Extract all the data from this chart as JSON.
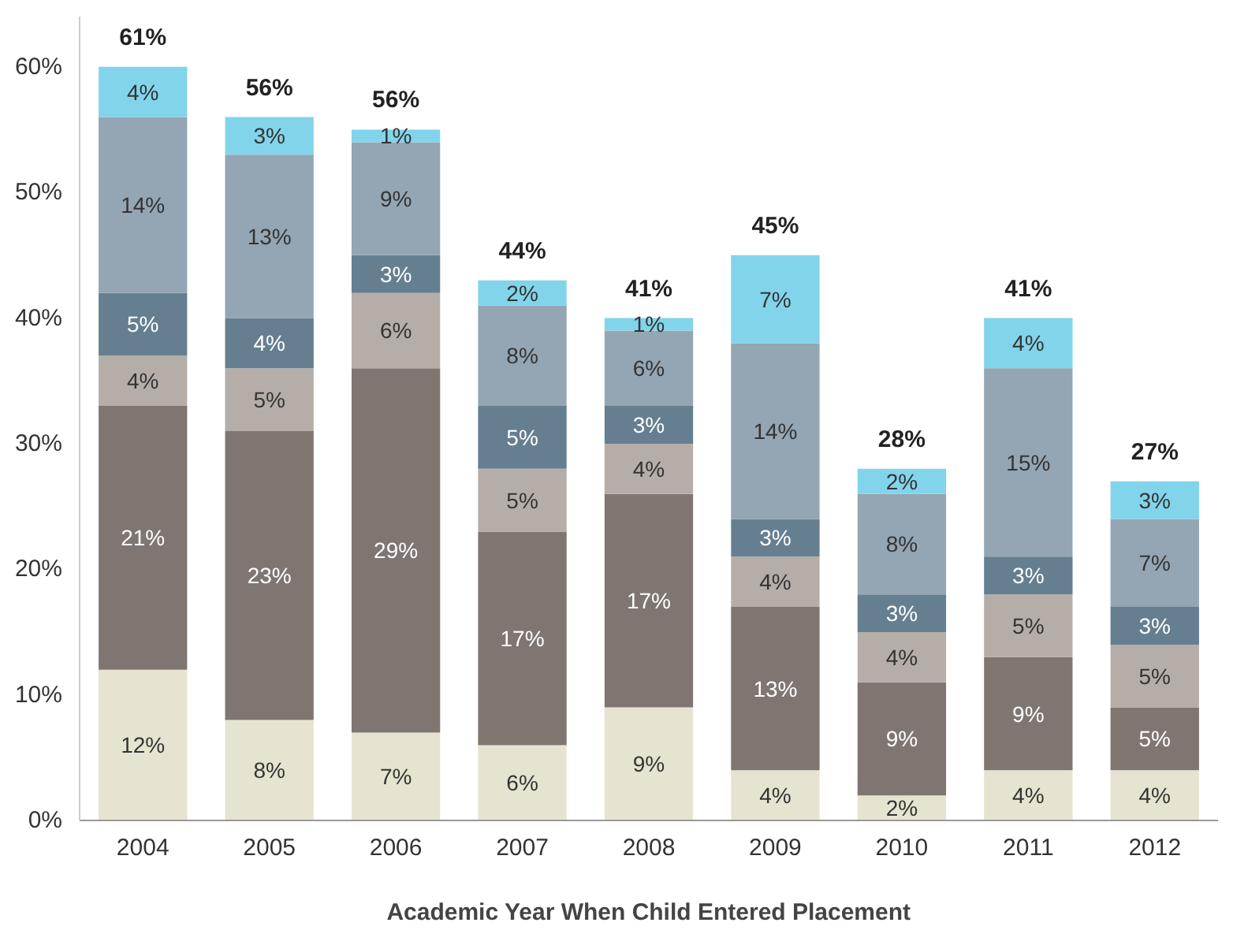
{
  "chart_data": {
    "type": "bar",
    "stacked": true,
    "xlabel": "Academic Year When Child Entered Placement",
    "categories": [
      "2004",
      "2005",
      "2006",
      "2007",
      "2008",
      "2009",
      "2010",
      "2011",
      "2012"
    ],
    "series": [
      {
        "color": "#e6e4d0",
        "values": [
          12,
          8,
          7,
          6,
          9,
          4,
          2,
          4,
          4
        ],
        "value_labels": [
          "12%",
          "8%",
          "7%",
          "6%",
          "9%",
          "4%",
          "2%",
          "4%",
          "4%"
        ]
      },
      {
        "color": "#7f7672",
        "values": [
          21,
          23,
          29,
          17,
          17,
          13,
          9,
          9,
          5
        ],
        "value_labels": [
          "21%",
          "23%",
          "29%",
          "17%",
          "17%",
          "13%",
          "9%",
          "9%",
          "5%"
        ]
      },
      {
        "color": "#b5aea8",
        "values": [
          4,
          5,
          6,
          5,
          4,
          4,
          4,
          5,
          5
        ],
        "value_labels": [
          "4%",
          "5%",
          "6%",
          "5%",
          "4%",
          "4%",
          "4%",
          "5%",
          "5%"
        ]
      },
      {
        "color": "#657f91",
        "values": [
          5,
          4,
          3,
          5,
          3,
          3,
          3,
          3,
          3
        ],
        "value_labels": [
          "5%",
          "4%",
          "3%",
          "5%",
          "3%",
          "3%",
          "3%",
          "3%",
          "3%"
        ]
      },
      {
        "color": "#94a5b3",
        "values": [
          14,
          13,
          9,
          8,
          6,
          14,
          8,
          15,
          7
        ],
        "value_labels": [
          "14%",
          "13%",
          "9%",
          "8%",
          "6%",
          "14%",
          "8%",
          "15%",
          "7%"
        ]
      },
      {
        "color": "#82d4ea",
        "values": [
          4,
          3,
          1,
          2,
          1,
          7,
          2,
          4,
          3
        ],
        "value_labels": [
          "4%",
          "3%",
          "1%",
          "2%",
          "1%",
          "7%",
          "2%",
          "4%",
          "3%"
        ]
      }
    ],
    "totals": [
      "61%",
      "56%",
      "56%",
      "44%",
      "41%",
      "45%",
      "28%",
      "41%",
      "27%"
    ],
    "grid": false,
    "ylim": [
      0,
      64
    ],
    "yticks": [
      {
        "value": 0,
        "label": "0%"
      },
      {
        "value": 10,
        "label": "10%"
      },
      {
        "value": 20,
        "label": "20%"
      },
      {
        "value": 30,
        "label": "30%"
      },
      {
        "value": 40,
        "label": "40%"
      },
      {
        "value": 50,
        "label": "50%"
      },
      {
        "value": 60,
        "label": "60%"
      }
    ]
  }
}
